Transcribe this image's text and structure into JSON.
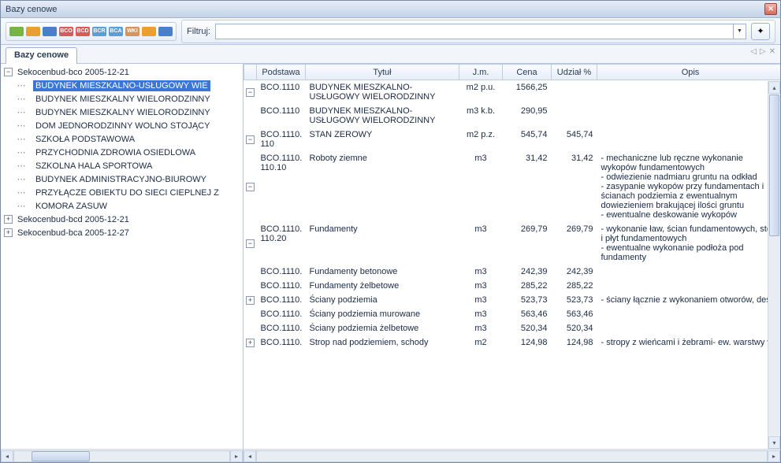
{
  "window": {
    "title": "Bazy cenowe"
  },
  "toolbar": {
    "icons": [
      {
        "bg": "#78b34a",
        "txt": ""
      },
      {
        "bg": "#e8a035",
        "txt": ""
      },
      {
        "bg": "#4a7fc9",
        "txt": ""
      },
      {
        "bg": "#d85a5a",
        "txt": "BCO"
      },
      {
        "bg": "#d85a5a",
        "txt": "BCD"
      },
      {
        "bg": "#5a9dd8",
        "txt": "BCR"
      },
      {
        "bg": "#5a9dd8",
        "txt": "BCA"
      },
      {
        "bg": "#d8925a",
        "txt": "WKI"
      },
      {
        "bg": "#e8a035",
        "txt": ""
      },
      {
        "bg": "#4a7fc9",
        "txt": ""
      }
    ],
    "filter_label": "Filtruj:",
    "filter_value": ""
  },
  "tab": {
    "label": "Bazy cenowe"
  },
  "tree": {
    "root": {
      "label": "Sekocenbud-bco 2005-12-21",
      "expanded": true,
      "children": [
        {
          "label": "BUDYNEK MIESZKALNO-USŁUGOWY WIE",
          "selected": true
        },
        {
          "label": "BUDYNEK MIESZKALNY WIELORODZINNY"
        },
        {
          "label": "BUDYNEK MIESZKALNY WIELORODZINNY"
        },
        {
          "label": "DOM JEDNORODZINNY WOLNO STOJĄCY"
        },
        {
          "label": "SZKOŁA PODSTAWOWA"
        },
        {
          "label": "PRZYCHODNIA ZDROWIA OSIEDLOWA"
        },
        {
          "label": "SZKOLNA HALA SPORTOWA"
        },
        {
          "label": "BUDYNEK ADMINISTRACYJNO-BIUROWY"
        },
        {
          "label": "PRZYŁĄCZE OBIEKTU DO SIECI CIEPLNEJ Z"
        },
        {
          "label": "KOMORA ZASUW"
        }
      ]
    },
    "siblings": [
      {
        "label": "Sekocenbud-bcd 2005-12-21",
        "expanded": false
      },
      {
        "label": "Sekocenbud-bca 2005-12-27",
        "expanded": false
      }
    ]
  },
  "grid": {
    "columns": {
      "podstawa": "Podstawa",
      "tytul": "Tytuł",
      "jm": "J.m.",
      "cena": "Cena",
      "udzial": "Udział %",
      "opis": "Opis"
    },
    "rows": [
      {
        "exp": "−",
        "pod": "BCO.1110",
        "tyt": "BUDYNEK MIESZKALNO-USŁUGOWY WIELORODZINNY",
        "jm": "m2 p.u.",
        "cena": "1566,25",
        "udz": "",
        "opis": ""
      },
      {
        "exp": "",
        "pod": "BCO.1110",
        "tyt": "BUDYNEK MIESZKALNO-USŁUGOWY WIELORODZINNY",
        "jm": "m3 k.b.",
        "cena": "290,95",
        "udz": "",
        "opis": ""
      },
      {
        "exp": "−",
        "pod": "BCO.1110. 110",
        "tyt": "STAN ZEROWY",
        "jm": "m2 p.z.",
        "cena": "545,74",
        "udz": "545,74",
        "opis": ""
      },
      {
        "exp": "−",
        "pod": "BCO.1110. 110.10",
        "tyt": "Roboty ziemne",
        "jm": "m3",
        "cena": "31,42",
        "udz": "31,42",
        "opis": "- mechaniczne lub ręczne wykonanie wykopów fundamentowych\n- odwiezienie nadmiaru gruntu na odkład\n- zasypanie wykopów przy fundamentach i ścianach podziemia z ewentualnym dowiezieniem brakującej ilości gruntu\n- ewentualne deskowanie wykopów"
      },
      {
        "exp": "−",
        "pod": "BCO.1110. 110.20",
        "tyt": "Fundamenty",
        "jm": "m3",
        "cena": "269,79",
        "udz": "269,79",
        "opis": "- wykonanie ław, ścian fundamentowych, stóp i płyt fundamentowych\n- ewentualne wykonanie podłoża pod fundamenty"
      },
      {
        "exp": "",
        "pod": "BCO.1110.",
        "tyt": "Fundamenty betonowe",
        "jm": "m3",
        "cena": "242,39",
        "udz": "242,39",
        "opis": ""
      },
      {
        "exp": "",
        "pod": "BCO.1110.",
        "tyt": "Fundamenty żelbetowe",
        "jm": "m3",
        "cena": "285,22",
        "udz": "285,22",
        "opis": ""
      },
      {
        "exp": "+",
        "pod": "BCO.1110.",
        "tyt": "Ściany podziemia",
        "jm": "m3",
        "cena": "523,73",
        "udz": "523,73",
        "opis": "- ściany łącznie z wykonaniem otworów, desko"
      },
      {
        "exp": "",
        "pod": "BCO.1110.",
        "tyt": "Ściany podziemia murowane",
        "jm": "m3",
        "cena": "563,46",
        "udz": "563,46",
        "opis": ""
      },
      {
        "exp": "",
        "pod": "BCO.1110.",
        "tyt": "Ściany podziemia żelbetowe",
        "jm": "m3",
        "cena": "520,34",
        "udz": "520,34",
        "opis": ""
      },
      {
        "exp": "+",
        "pod": "BCO.1110.",
        "tyt": "Strop nad podziemiem, schody",
        "jm": "m2",
        "cena": "124,98",
        "udz": "124,98",
        "opis": "- stropy z wieńcami i żebrami- ew. warstwy wy"
      }
    ]
  }
}
